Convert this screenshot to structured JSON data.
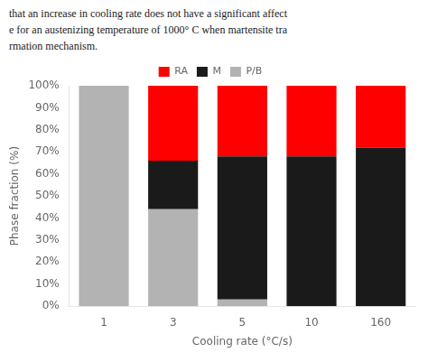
{
  "chart_data": {
    "type": "bar",
    "annotations": [
      "that an increase in cooling rate does not have a significant affect",
      "e for an austenizing temperature of 1000° C when martensite tra",
      "rmation mechanism."
    ],
    "xlabel": "Cooling rate (°C/s)",
    "ylabel": "Phase fraction (%)",
    "categories": [
      "1",
      "3",
      "5",
      "10",
      "160"
    ],
    "series": [
      {
        "name": "RA",
        "color": "#ff0000",
        "values": [
          0.0,
          0.34,
          0.32,
          0.32,
          0.28
        ]
      },
      {
        "name": "M",
        "color": "#1a1a1a",
        "values": [
          0.0,
          0.22,
          0.65,
          0.68,
          0.72
        ]
      },
      {
        "name": "P/B",
        "color": "#b3b3b3",
        "values": [
          1.0,
          0.44,
          0.03,
          0.0,
          0.0
        ]
      }
    ],
    "stacked": true,
    "ylim": [
      0,
      1.0
    ],
    "yticks": [
      {
        "value": 0.0,
        "label": "0%"
      },
      {
        "value": 0.1,
        "label": "10%"
      },
      {
        "value": 0.2,
        "label": "20%"
      },
      {
        "value": 0.3,
        "label": "30%"
      },
      {
        "value": 0.4,
        "label": "40%"
      },
      {
        "value": 0.5,
        "label": "50%"
      },
      {
        "value": 0.6,
        "label": "60%"
      },
      {
        "value": 0.7,
        "label": "70%"
      },
      {
        "value": 0.8,
        "label": "80%"
      },
      {
        "value": 0.9,
        "label": "90%"
      },
      {
        "value": 1.0,
        "label": "100%"
      }
    ],
    "grid": false,
    "legend": "top"
  }
}
